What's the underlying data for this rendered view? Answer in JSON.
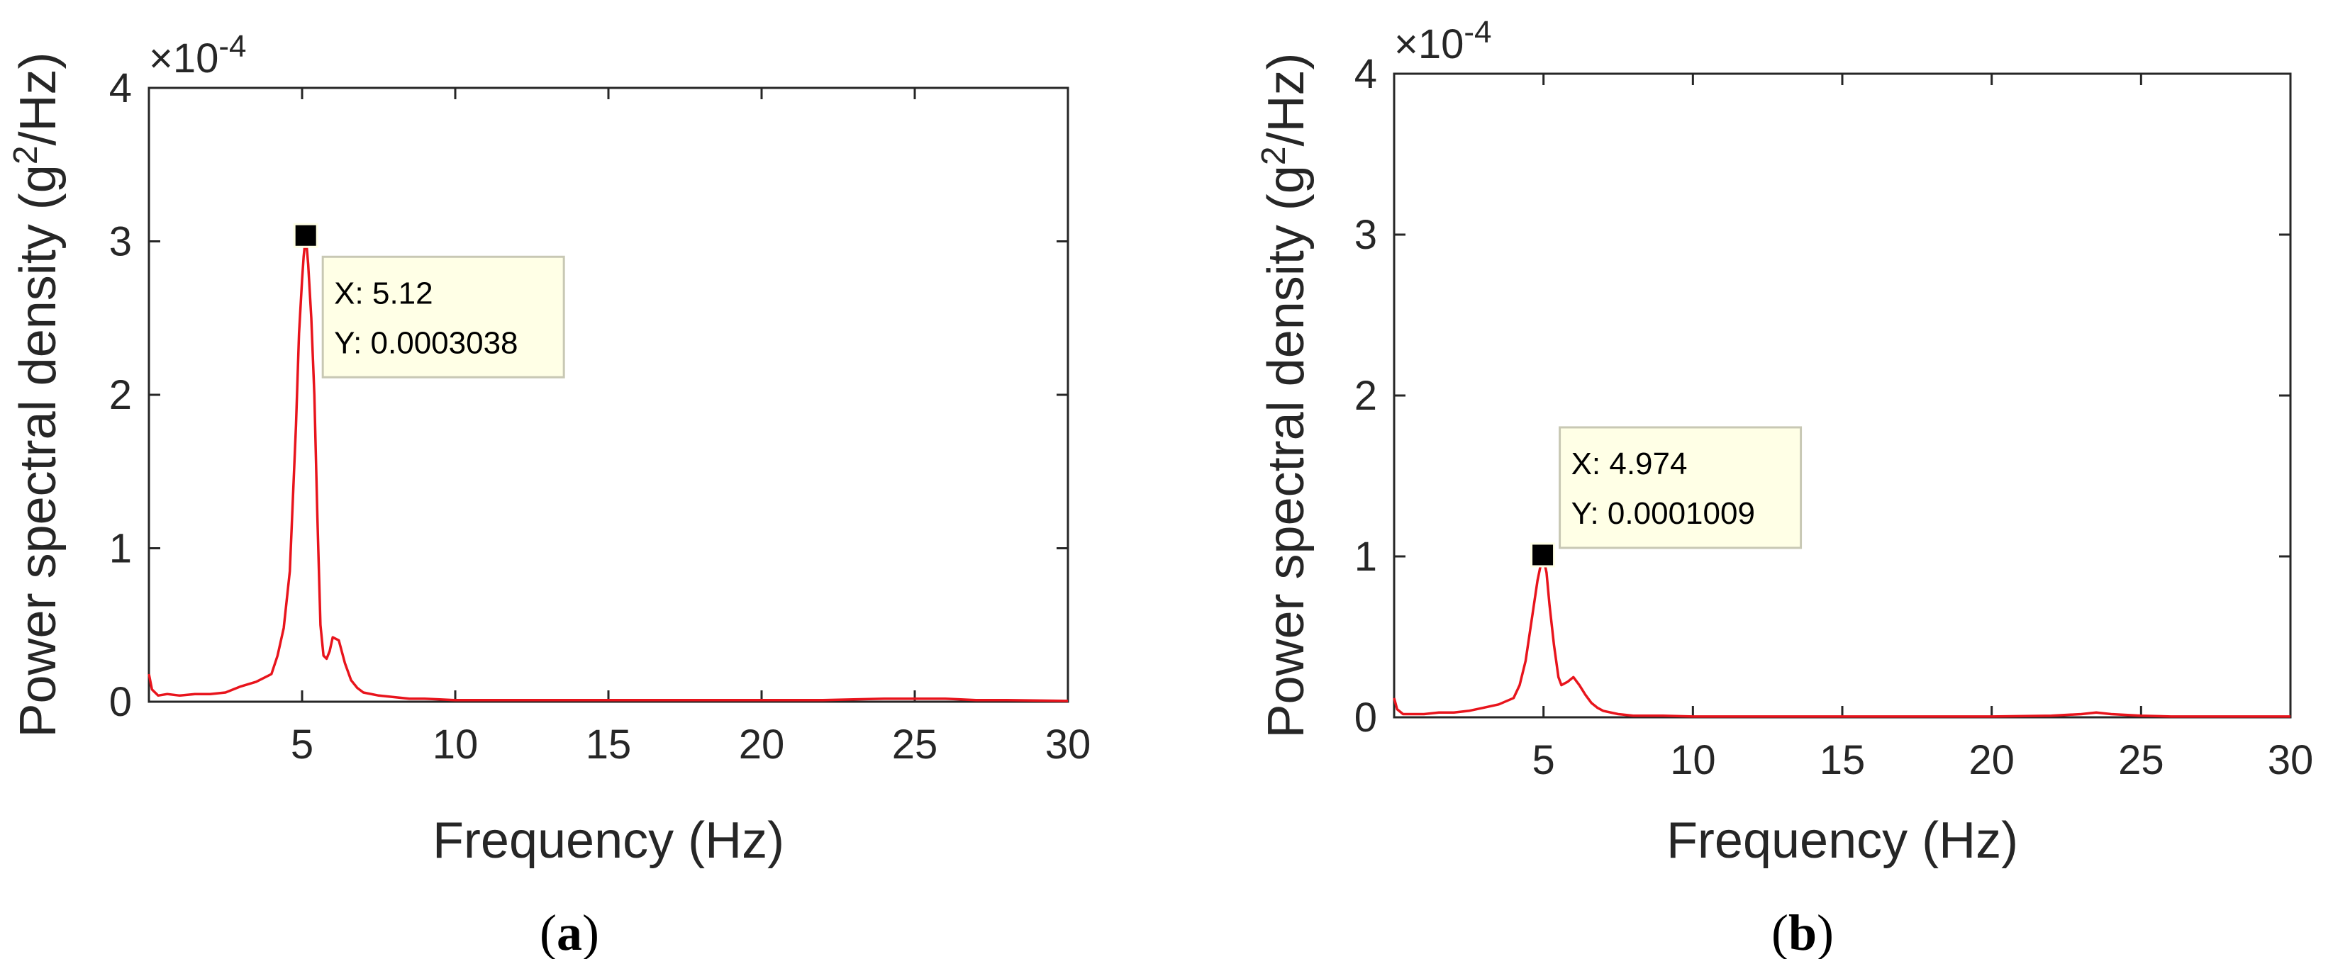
{
  "line_color": "#e8141c",
  "axis_color": "#262626",
  "tooltip_bg": "#ffffe6",
  "chart_data": [
    {
      "panel": "(a)",
      "panel_letter": "a",
      "type": "line",
      "xlabel": "Frequency (Hz)",
      "ylabel_pre": "Power spectral density (g",
      "ylabel_sup": "2",
      "ylabel_post": "/Hz)",
      "exponent_base": "×10",
      "exponent_power": "-4",
      "xlim": [
        0,
        30
      ],
      "ylim": [
        0,
        4
      ],
      "xticks": [
        5,
        10,
        15,
        20,
        25,
        30
      ],
      "yticks": [
        0,
        1,
        2,
        3,
        4
      ],
      "grid": false,
      "series": [
        {
          "x": [
            0,
            0.1,
            0.3,
            0.6,
            1.0,
            1.5,
            2.0,
            2.5,
            3.0,
            3.5,
            4.0,
            4.2,
            4.4,
            4.6,
            4.8,
            4.9,
            5.0,
            5.05,
            5.12,
            5.2,
            5.3,
            5.4,
            5.5,
            5.6,
            5.7,
            5.8,
            5.9,
            6.0,
            6.2,
            6.4,
            6.6,
            6.8,
            7.0,
            7.5,
            8.0,
            8.5,
            9.0,
            10,
            11,
            12,
            14,
            16,
            18,
            20,
            22,
            24,
            25,
            26,
            27,
            28,
            30
          ],
          "y": [
            0.18,
            0.08,
            0.04,
            0.05,
            0.04,
            0.05,
            0.05,
            0.06,
            0.1,
            0.13,
            0.18,
            0.3,
            0.48,
            0.85,
            1.8,
            2.4,
            2.75,
            2.9,
            3.038,
            2.85,
            2.5,
            2.0,
            1.2,
            0.5,
            0.3,
            0.28,
            0.33,
            0.42,
            0.4,
            0.25,
            0.14,
            0.09,
            0.06,
            0.04,
            0.03,
            0.02,
            0.02,
            0.01,
            0.01,
            0.01,
            0.01,
            0.01,
            0.01,
            0.01,
            0.01,
            0.02,
            0.02,
            0.02,
            0.01,
            0.01,
            0.005
          ]
        }
      ],
      "datatip": {
        "x": 5.12,
        "y": 0.0003038,
        "label_x": "X: 5.12",
        "label_y": "Y: 0.0003038"
      }
    },
    {
      "panel": "(b)",
      "panel_letter": "b",
      "type": "line",
      "xlabel": "Frequency (Hz)",
      "ylabel_pre": "Power spectral density (g",
      "ylabel_sup": "2",
      "ylabel_post": "/Hz)",
      "exponent_base": "×10",
      "exponent_power": "-4",
      "xlim": [
        0,
        30
      ],
      "ylim": [
        0,
        4
      ],
      "xticks": [
        5,
        10,
        15,
        20,
        25,
        30
      ],
      "yticks": [
        0,
        1,
        2,
        3,
        4
      ],
      "grid": false,
      "series": [
        {
          "x": [
            0,
            0.1,
            0.3,
            0.6,
            1.0,
            1.5,
            2.0,
            2.5,
            3.0,
            3.5,
            4.0,
            4.2,
            4.4,
            4.6,
            4.8,
            4.974,
            5.1,
            5.2,
            5.35,
            5.5,
            5.6,
            5.8,
            6.0,
            6.2,
            6.4,
            6.6,
            6.8,
            7.0,
            7.5,
            8.0,
            9.0,
            10,
            12,
            14,
            16,
            18,
            20,
            22,
            23,
            23.5,
            24,
            25,
            26,
            28,
            30
          ],
          "y": [
            0.12,
            0.05,
            0.02,
            0.02,
            0.02,
            0.03,
            0.03,
            0.04,
            0.06,
            0.08,
            0.12,
            0.2,
            0.35,
            0.6,
            0.85,
            1.009,
            0.9,
            0.7,
            0.45,
            0.25,
            0.2,
            0.22,
            0.25,
            0.2,
            0.14,
            0.09,
            0.06,
            0.04,
            0.02,
            0.01,
            0.01,
            0.005,
            0.005,
            0.005,
            0.005,
            0.005,
            0.005,
            0.01,
            0.02,
            0.03,
            0.02,
            0.01,
            0.005,
            0.005,
            0.005
          ]
        }
      ],
      "datatip": {
        "x": 4.974,
        "y": 0.0001009,
        "label_x": "X: 4.974",
        "label_y": "Y: 0.0001009"
      }
    }
  ]
}
